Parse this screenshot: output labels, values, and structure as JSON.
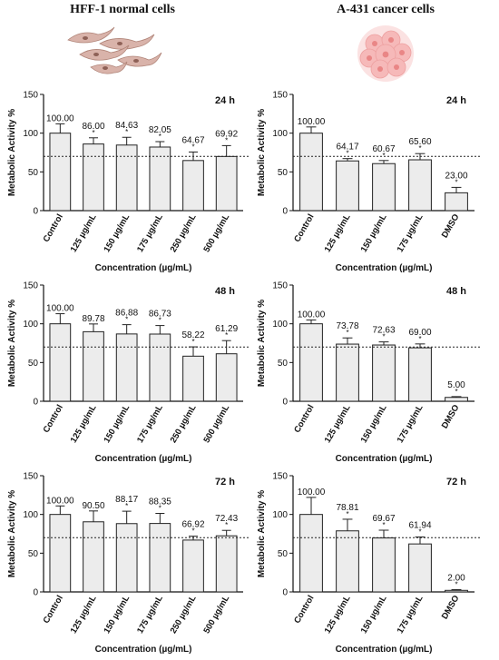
{
  "titles": {
    "left": "HFF-1 normal cells",
    "right": "A-431 cancer cells"
  },
  "colors": {
    "bar_fill": "#ececec",
    "bar_stroke": "#222222",
    "axis": "#111111"
  },
  "chart_data": [
    {
      "type": "bar",
      "title": "24 h",
      "column": "HFF-1 normal cells",
      "categories": [
        "Control",
        "125 µg/mL",
        "150 µg/mL",
        "175 µg/mL",
        "250 µg/mL",
        "500 µg/mL"
      ],
      "values": [
        100,
        86,
        84.63,
        82.05,
        64.67,
        69.92
      ],
      "value_labels": [
        "100.00",
        "86.00",
        "84.63",
        "82.05",
        "64.67",
        "69.92"
      ],
      "errors": [
        12,
        8,
        10,
        7,
        11,
        14
      ],
      "significant": [
        false,
        true,
        true,
        true,
        true,
        true
      ],
      "xlabel": "Concentration (µg/mL)",
      "ylabel": "Metabolic Activity %",
      "ylim": [
        0,
        150
      ],
      "yticks": [
        0,
        50,
        100,
        150
      ],
      "reference_line": 70
    },
    {
      "type": "bar",
      "title": "24 h",
      "column": "A-431 cancer cells",
      "categories": [
        "Control",
        "125 µg/mL",
        "150 µg/mL",
        "175 µg/mL",
        "DMSO"
      ],
      "values": [
        100,
        64.17,
        60.67,
        65.6,
        23
      ],
      "value_labels": [
        "100.00",
        "64.17",
        "60.67",
        "65.60",
        "23.00"
      ],
      "errors": [
        8,
        3,
        4,
        8,
        7
      ],
      "significant": [
        false,
        true,
        true,
        true,
        true
      ],
      "xlabel": "Concentration (µg/mL)",
      "ylabel": "Metabolic Activity %",
      "ylim": [
        0,
        150
      ],
      "yticks": [
        0,
        50,
        100,
        150
      ],
      "reference_line": 70
    },
    {
      "type": "bar",
      "title": "48 h",
      "column": "HFF-1 normal cells",
      "categories": [
        "Control",
        "125 µg/mL",
        "150 µg/mL",
        "175 µg/mL",
        "250 µg/mL",
        "500 µg/mL"
      ],
      "values": [
        100,
        89.78,
        86.88,
        86.73,
        58.22,
        61.29
      ],
      "value_labels": [
        "100.00",
        "89.78",
        "86.88",
        "86.73",
        "58.22",
        "61.29"
      ],
      "errors": [
        13,
        10,
        12,
        11,
        12,
        17
      ],
      "significant": [
        false,
        false,
        true,
        true,
        true,
        true
      ],
      "xlabel": "Concentration (µg/mL)",
      "ylabel": "Metabolic Activity %",
      "ylim": [
        0,
        150
      ],
      "yticks": [
        0,
        50,
        100,
        150
      ],
      "reference_line": 70
    },
    {
      "type": "bar",
      "title": "48 h",
      "column": "A-431 cancer cells",
      "categories": [
        "Control",
        "125 µg/mL",
        "150 µg/mL",
        "175 µg/mL",
        "DMSO"
      ],
      "values": [
        100,
        73.78,
        72.63,
        69,
        5
      ],
      "value_labels": [
        "100.00",
        "73.78",
        "72.63",
        "69.00",
        "5.00"
      ],
      "errors": [
        5,
        8,
        4,
        5,
        1
      ],
      "significant": [
        false,
        true,
        true,
        true,
        true
      ],
      "xlabel": "Concentration (µg/mL)",
      "ylabel": "Metabolic Activity %",
      "ylim": [
        0,
        150
      ],
      "yticks": [
        0,
        50,
        100,
        150
      ],
      "reference_line": 70
    },
    {
      "type": "bar",
      "title": "72 h",
      "column": "HFF-1 normal cells",
      "categories": [
        "Control",
        "125 µg/mL",
        "150 µg/mL",
        "175 µg/mL",
        "250 µg/mL",
        "500 µg/mL"
      ],
      "values": [
        100,
        90.5,
        88.17,
        88.35,
        66.92,
        72.43
      ],
      "value_labels": [
        "100.00",
        "90.50",
        "88.17",
        "88.35",
        "66.92",
        "72.43"
      ],
      "errors": [
        11,
        14,
        16,
        13,
        5,
        7
      ],
      "significant": [
        false,
        false,
        true,
        true,
        true,
        true
      ],
      "xlabel": "Concentration (µg/mL)",
      "ylabel": "Metabolic Activity %",
      "ylim": [
        0,
        150
      ],
      "yticks": [
        0,
        50,
        100,
        150
      ],
      "reference_line": 70
    },
    {
      "type": "bar",
      "title": "72 h",
      "column": "A-431 cancer cells",
      "categories": [
        "Control",
        "125 µg/mL",
        "150 µg/mL",
        "175 µg/mL",
        "DMSO"
      ],
      "values": [
        100,
        78.81,
        69.67,
        61.94,
        2
      ],
      "value_labels": [
        "100.00",
        "78.81",
        "69.67",
        "61.94",
        "2.00"
      ],
      "errors": [
        22,
        15,
        10,
        9,
        1
      ],
      "significant": [
        false,
        true,
        true,
        true,
        true
      ],
      "xlabel": "Concentration (µg/mL)",
      "ylabel": "Metabolic Activity %",
      "ylim": [
        0,
        150
      ],
      "yticks": [
        0,
        50,
        100,
        150
      ],
      "reference_line": 70
    }
  ]
}
